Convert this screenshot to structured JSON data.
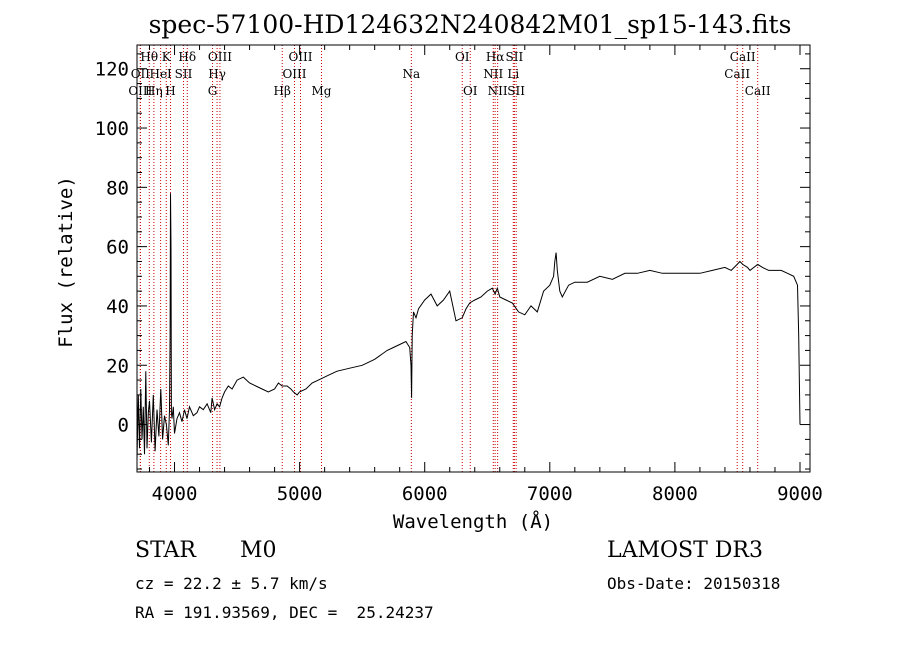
{
  "chart_data": {
    "type": "line",
    "title": "spec-57100-HD124632N240842M01_sp15-143.fits",
    "xlabel": "Wavelength (Å)",
    "ylabel": "Flux (relative)",
    "xlim": [
      3700,
      9080
    ],
    "ylim": [
      -16,
      128
    ],
    "xticks": [
      4000,
      5000,
      6000,
      7000,
      8000,
      9000
    ],
    "yticks": [
      0,
      20,
      40,
      60,
      80,
      100,
      120
    ],
    "grid": false,
    "series": [
      {
        "name": "flux",
        "x": [
          3700,
          3710,
          3720,
          3730,
          3740,
          3750,
          3760,
          3770,
          3780,
          3790,
          3800,
          3815,
          3830,
          3845,
          3860,
          3875,
          3890,
          3905,
          3920,
          3935,
          3950,
          3960,
          3965,
          3968,
          3972,
          3975,
          3980,
          3990,
          4000,
          4020,
          4040,
          4060,
          4080,
          4100,
          4120,
          4150,
          4180,
          4200,
          4230,
          4260,
          4290,
          4300,
          4320,
          4340,
          4360,
          4380,
          4400,
          4430,
          4460,
          4500,
          4550,
          4600,
          4650,
          4700,
          4750,
          4800,
          4830,
          4860,
          4900,
          4930,
          4950,
          4980,
          5000,
          5050,
          5100,
          5150,
          5200,
          5250,
          5300,
          5400,
          5500,
          5600,
          5700,
          5750,
          5800,
          5850,
          5880,
          5890,
          5895,
          5900,
          5910,
          5930,
          5950,
          6000,
          6050,
          6100,
          6150,
          6200,
          6250,
          6300,
          6330,
          6360,
          6400,
          6450,
          6500,
          6540,
          6563,
          6580,
          6600,
          6650,
          6700,
          6750,
          6800,
          6850,
          6900,
          6950,
          7000,
          7030,
          7040,
          7050,
          7060,
          7080,
          7100,
          7150,
          7200,
          7300,
          7400,
          7500,
          7600,
          7700,
          7800,
          7900,
          8000,
          8100,
          8200,
          8300,
          8400,
          8450,
          8498,
          8520,
          8542,
          8580,
          8600,
          8662,
          8700,
          8750,
          8800,
          8850,
          8900,
          8950,
          8980,
          8990,
          9000
        ],
        "y": [
          -12,
          10,
          -8,
          12,
          -5,
          6,
          -10,
          18,
          -8,
          4,
          8,
          -6,
          10,
          -9,
          5,
          -4,
          12,
          -5,
          3,
          0,
          -7,
          5,
          30,
          78,
          60,
          4,
          2,
          6,
          -3,
          2,
          4,
          1,
          5,
          2,
          6,
          3,
          4,
          6,
          5,
          7,
          4,
          9,
          5,
          7,
          6,
          9,
          11,
          13,
          12,
          15,
          16,
          14,
          13,
          12,
          11,
          12,
          14,
          13,
          13,
          12,
          11,
          10,
          11,
          12,
          14,
          15,
          16,
          17,
          18,
          19,
          20,
          22,
          25,
          26,
          27,
          28,
          26,
          20,
          9,
          30,
          38,
          36,
          39,
          42,
          44,
          40,
          42,
          45,
          35,
          36,
          39,
          41,
          42,
          43,
          45,
          46,
          44,
          46,
          43,
          42,
          41,
          38,
          37,
          40,
          38,
          45,
          47,
          50,
          55,
          58,
          52,
          45,
          43,
          47,
          48,
          48,
          50,
          49,
          51,
          51,
          52,
          51,
          51,
          51,
          51,
          52,
          53,
          52,
          54,
          55,
          54,
          53,
          52,
          54,
          53,
          52,
          52,
          52,
          51,
          50,
          47,
          30,
          0
        ]
      }
    ],
    "spectral_lines": [
      {
        "label": "Hθ",
        "x": 3798,
        "row": 1
      },
      {
        "label": "OII",
        "x": 3727,
        "row": 2
      },
      {
        "label": "OIII",
        "x": 3727,
        "row": 3
      },
      {
        "label": "Hη",
        "x": 3835,
        "row": 3
      },
      {
        "label": "K",
        "x": 3934,
        "row": 1
      },
      {
        "label": "HeI",
        "x": 3889,
        "row": 2
      },
      {
        "label": "H",
        "x": 3968,
        "row": 3
      },
      {
        "label": "Hδ",
        "x": 4102,
        "row": 1
      },
      {
        "label": "SII",
        "x": 4072,
        "row": 2
      },
      {
        "label": "OIII",
        "x": 4363,
        "row": 1
      },
      {
        "label": "Hγ",
        "x": 4340,
        "row": 2
      },
      {
        "label": "G",
        "x": 4304,
        "row": 3
      },
      {
        "label": "OIII",
        "x": 5007,
        "row": 1
      },
      {
        "label": "OIII",
        "x": 4959,
        "row": 2
      },
      {
        "label": "Hβ",
        "x": 4861,
        "row": 3
      },
      {
        "label": "Mg",
        "x": 5175,
        "row": 3
      },
      {
        "label": "Na",
        "x": 5893,
        "row": 2
      },
      {
        "label": "OI",
        "x": 6300,
        "row": 1
      },
      {
        "label": "OI",
        "x": 6364,
        "row": 3
      },
      {
        "label": "Hα",
        "x": 6563,
        "row": 1
      },
      {
        "label": "SII",
        "x": 6717,
        "row": 1
      },
      {
        "label": "NII",
        "x": 6548,
        "row": 2
      },
      {
        "label": "Li",
        "x": 6708,
        "row": 2
      },
      {
        "label": "NII",
        "x": 6583,
        "row": 3
      },
      {
        "label": "SII",
        "x": 6731,
        "row": 3
      },
      {
        "label": "CaII",
        "x": 8542,
        "row": 1
      },
      {
        "label": "CaII",
        "x": 8498,
        "row": 2
      },
      {
        "label": "CaII",
        "x": 8662,
        "row": 3
      }
    ]
  },
  "footer": {
    "object_class": "STAR",
    "subclass": "M0",
    "survey": "LAMOST DR3",
    "redshift": "cz = 22.2 ± 5.7 km/s",
    "obs_date": "Obs-Date: 20150318",
    "coordinates": "RA = 191.93569, DEC =  25.24237"
  },
  "colors": {
    "line_marker": "#cc0000",
    "spectrum": "#000000",
    "axes": "#000000"
  }
}
